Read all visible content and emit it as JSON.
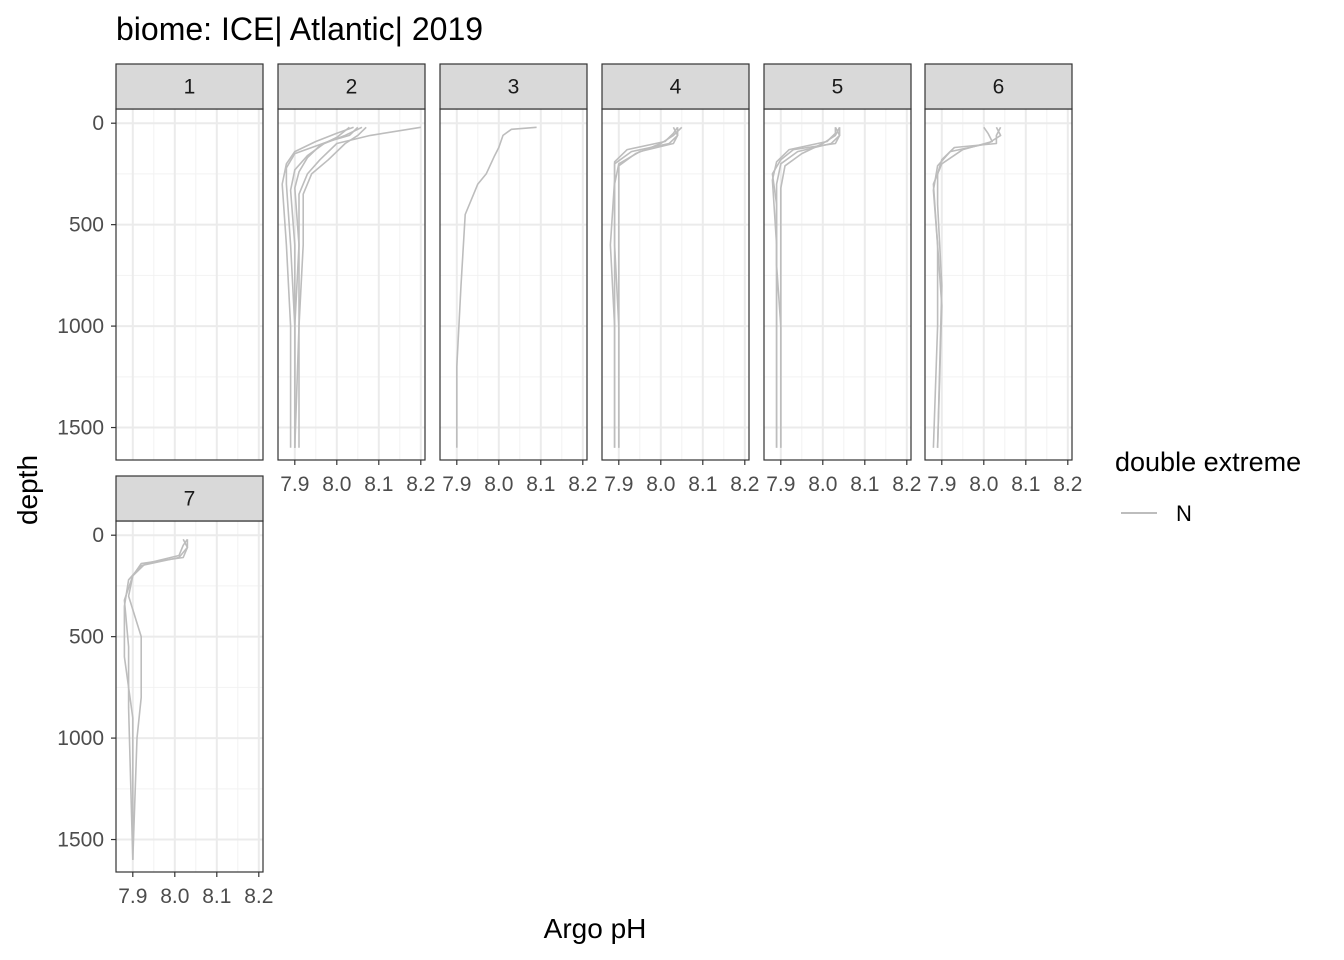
{
  "chart_data": {
    "type": "line",
    "title": "biome: ICE| Atlantic| 2019",
    "xlabel": "Argo pH",
    "ylabel": "depth",
    "xlim": [
      7.86,
      8.21
    ],
    "ylim": [
      1660,
      -70
    ],
    "x_ticks": [
      7.9,
      8.0,
      8.1,
      8.2
    ],
    "x_tick_labels": [
      "7.9",
      "8.0",
      "8.1",
      "8.2"
    ],
    "y_ticks": [
      0,
      500,
      1000,
      1500
    ],
    "y_tick_labels": [
      "0",
      "500",
      "1000",
      "1500"
    ],
    "grid": true,
    "line_color": "#bdbdbd",
    "legend": {
      "title": "double extreme",
      "entries": [
        {
          "label": "N",
          "color": "#bdbdbd"
        }
      ],
      "placement": "right"
    },
    "panels": [
      {
        "label": "1",
        "series": []
      },
      {
        "label": "2",
        "series": [
          {
            "name": "p2a",
            "depth": [
              20,
              60,
              100,
              180,
              250,
              350,
              600,
              1000,
              1600
            ],
            "ph": [
              8.2,
              8.08,
              8.0,
              7.96,
              7.93,
              7.91,
              7.91,
              7.9,
              7.9
            ]
          },
          {
            "name": "p2b",
            "depth": [
              20,
              60,
              100,
              180,
              250,
              350,
              600,
              1000,
              1600
            ],
            "ph": [
              8.07,
              8.05,
              8.02,
              7.98,
              7.94,
              7.92,
              7.92,
              7.91,
              7.91
            ]
          },
          {
            "name": "p2c",
            "depth": [
              20,
              60,
              90,
              150,
              220,
              300,
              600,
              1000,
              1600
            ],
            "ph": [
              8.05,
              8.03,
              7.98,
              7.9,
              7.88,
              7.88,
              7.89,
              7.9,
              7.9
            ]
          },
          {
            "name": "p2d",
            "depth": [
              20,
              50,
              90,
              140,
              200,
              300,
              600,
              1000,
              1600
            ],
            "ph": [
              8.04,
              8.0,
              7.95,
              7.9,
              7.88,
              7.87,
              7.88,
              7.89,
              7.89
            ]
          },
          {
            "name": "p2e",
            "depth": [
              20,
              60,
              100,
              160,
              230,
              330,
              600,
              1000,
              1600
            ],
            "ph": [
              8.06,
              8.02,
              7.97,
              7.93,
              7.9,
              7.89,
              7.9,
              7.9,
              7.9
            ]
          },
          {
            "name": "p2f",
            "depth": [
              20,
              70,
              110,
              170,
              240,
              320,
              600,
              1000,
              1600
            ],
            "ph": [
              8.03,
              8.0,
              7.96,
              7.93,
              7.91,
              7.9,
              7.91,
              7.91,
              7.9
            ]
          }
        ]
      },
      {
        "label": "3",
        "series": [
          {
            "name": "p3a",
            "depth": [
              20,
              30,
              60,
              120,
              160,
              250,
              300,
              450,
              800,
              1200,
              1600
            ],
            "ph": [
              8.09,
              8.03,
              8.01,
              8.0,
              7.99,
              7.97,
              7.95,
              7.92,
              7.91,
              7.9,
              7.9
            ]
          }
        ]
      },
      {
        "label": "4",
        "series": [
          {
            "name": "p4a",
            "depth": [
              20,
              60,
              100,
              140,
              200,
              300,
              600,
              1000,
              1600
            ],
            "ph": [
              8.04,
              8.04,
              8.03,
              7.95,
              7.9,
              7.89,
              7.89,
              7.9,
              7.9
            ]
          },
          {
            "name": "p4b",
            "depth": [
              20,
              60,
              100,
              140,
              200,
              300,
              600,
              1000,
              1600
            ],
            "ph": [
              8.03,
              8.04,
              8.02,
              7.93,
              7.89,
              7.89,
              7.89,
              7.89,
              7.89
            ]
          },
          {
            "name": "p4c",
            "depth": [
              20,
              60,
              100,
              150,
              210,
              320,
              600,
              1000,
              1600
            ],
            "ph": [
              8.05,
              8.03,
              8.0,
              7.94,
              7.9,
              7.9,
              7.9,
              7.9,
              7.9
            ]
          },
          {
            "name": "p4d",
            "depth": [
              20,
              50,
              90,
              130,
              190,
              280,
              600,
              1000,
              1600
            ],
            "ph": [
              8.04,
              8.03,
              8.01,
              7.92,
              7.89,
              7.89,
              7.88,
              7.89,
              7.89
            ]
          }
        ]
      },
      {
        "label": "5",
        "series": [
          {
            "name": "p5a",
            "depth": [
              20,
              60,
              100,
              130,
              180,
              250,
              400,
              700,
              1000,
              1600
            ],
            "ph": [
              8.04,
              8.04,
              8.03,
              7.93,
              7.9,
              7.88,
              7.89,
              7.89,
              7.9,
              7.9
            ]
          },
          {
            "name": "p5b",
            "depth": [
              20,
              60,
              100,
              140,
              200,
              300,
              600,
              1000,
              1600
            ],
            "ph": [
              8.03,
              8.04,
              8.02,
              7.94,
              7.9,
              7.89,
              7.89,
              7.89,
              7.89
            ]
          },
          {
            "name": "p5c",
            "depth": [
              20,
              60,
              100,
              150,
              210,
              320,
              600,
              1000,
              1600
            ],
            "ph": [
              8.04,
              8.03,
              8.0,
              7.95,
              7.91,
              7.9,
              7.9,
              7.9,
              7.9
            ]
          },
          {
            "name": "p5d",
            "depth": [
              20,
              50,
              90,
              130,
              190,
              280,
              600,
              1000,
              1600
            ],
            "ph": [
              8.03,
              8.03,
              8.01,
              7.92,
              7.89,
              7.88,
              7.89,
              7.89,
              7.89
            ]
          }
        ]
      },
      {
        "label": "6",
        "series": [
          {
            "name": "p6a",
            "depth": [
              20,
              60,
              100,
              120,
              180,
              250,
              400,
              800,
              1600
            ],
            "ph": [
              8.04,
              8.03,
              8.03,
              7.93,
              7.9,
              7.89,
              7.89,
              7.9,
              7.89
            ]
          },
          {
            "name": "p6b",
            "depth": [
              20,
              50,
              90,
              130,
              200,
              300,
              600,
              1000,
              1600
            ],
            "ph": [
              8.0,
              8.01,
              8.02,
              7.95,
              7.9,
              7.88,
              7.89,
              7.89,
              7.88
            ]
          },
          {
            "name": "p6c",
            "depth": [
              20,
              60,
              100,
              140,
              210,
              330,
              600,
              900,
              1600
            ],
            "ph": [
              8.03,
              8.04,
              8.01,
              7.92,
              7.89,
              7.88,
              7.89,
              7.9,
              7.89
            ]
          }
        ]
      },
      {
        "label": "7",
        "series": [
          {
            "name": "p7a",
            "depth": [
              20,
              60,
              110,
              140,
              200,
              300,
              500,
              800,
              1000,
              1600
            ],
            "ph": [
              8.03,
              8.03,
              8.02,
              7.92,
              7.9,
              7.89,
              7.92,
              7.92,
              7.91,
              7.9
            ]
          },
          {
            "name": "p7b",
            "depth": [
              20,
              60,
              110,
              150,
              220,
              350,
              600,
              900,
              1600
            ],
            "ph": [
              8.02,
              8.03,
              8.01,
              7.92,
              7.89,
              7.88,
              7.88,
              7.9,
              7.9
            ]
          },
          {
            "name": "p7c",
            "depth": [
              20,
              50,
              100,
              140,
              200,
              320,
              550,
              850,
              1600
            ],
            "ph": [
              8.03,
              8.02,
              8.01,
              7.93,
              7.9,
              7.88,
              7.89,
              7.89,
              7.9
            ]
          }
        ]
      }
    ]
  }
}
